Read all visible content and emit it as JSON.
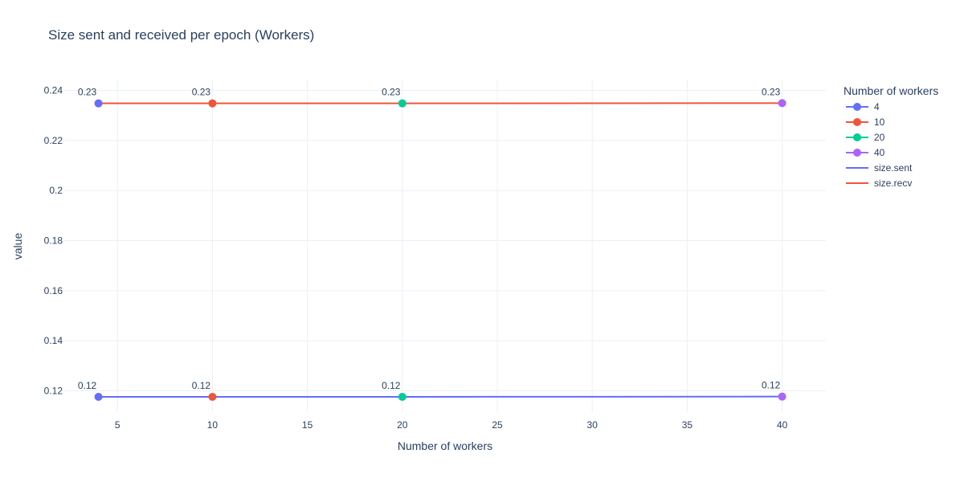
{
  "chart_data": {
    "type": "line",
    "title": "Size sent and received per epoch (Workers)",
    "xlabel": "Number of workers",
    "ylabel": "value",
    "xlim": [
      2.2,
      42.3
    ],
    "ylim": [
      0.1115,
      0.244
    ],
    "x_ticks": [
      5,
      10,
      15,
      20,
      25,
      30,
      35,
      40
    ],
    "y_ticks": [
      0.12,
      0.14,
      0.16,
      0.18,
      0.2,
      0.22,
      0.24
    ],
    "y_tick_labels": [
      "0.12",
      "0.14",
      "0.16",
      "0.18",
      "0.2",
      "0.22",
      "0.24"
    ],
    "grid": true,
    "legend_title": "Number of workers",
    "legend_position": "right",
    "lines": [
      {
        "name": "size.sent",
        "color": "#636efa",
        "x": [
          4,
          10,
          20,
          40
        ],
        "y": [
          0.1176,
          0.1176,
          0.1176,
          0.1177
        ]
      },
      {
        "name": "size.recv",
        "color": "#EF553B",
        "x": [
          4,
          10,
          20,
          40
        ],
        "y": [
          0.2348,
          0.2348,
          0.2348,
          0.2349
        ]
      }
    ],
    "marker_series": [
      {
        "name": "4",
        "color": "#636efa",
        "x": 4,
        "y_values": [
          0.2348,
          0.1176
        ],
        "labels": [
          "0.23",
          "0.12"
        ]
      },
      {
        "name": "10",
        "color": "#EF553B",
        "x": 10,
        "y_values": [
          0.2348,
          0.1176
        ],
        "labels": [
          "0.23",
          "0.12"
        ]
      },
      {
        "name": "20",
        "color": "#00cc96",
        "x": 20,
        "y_values": [
          0.2348,
          0.1176
        ],
        "labels": [
          "0.23",
          "0.12"
        ]
      },
      {
        "name": "40",
        "color": "#ab63fa",
        "x": 40,
        "y_values": [
          0.2349,
          0.1177
        ],
        "labels": [
          "0.23",
          "0.12"
        ]
      }
    ]
  }
}
